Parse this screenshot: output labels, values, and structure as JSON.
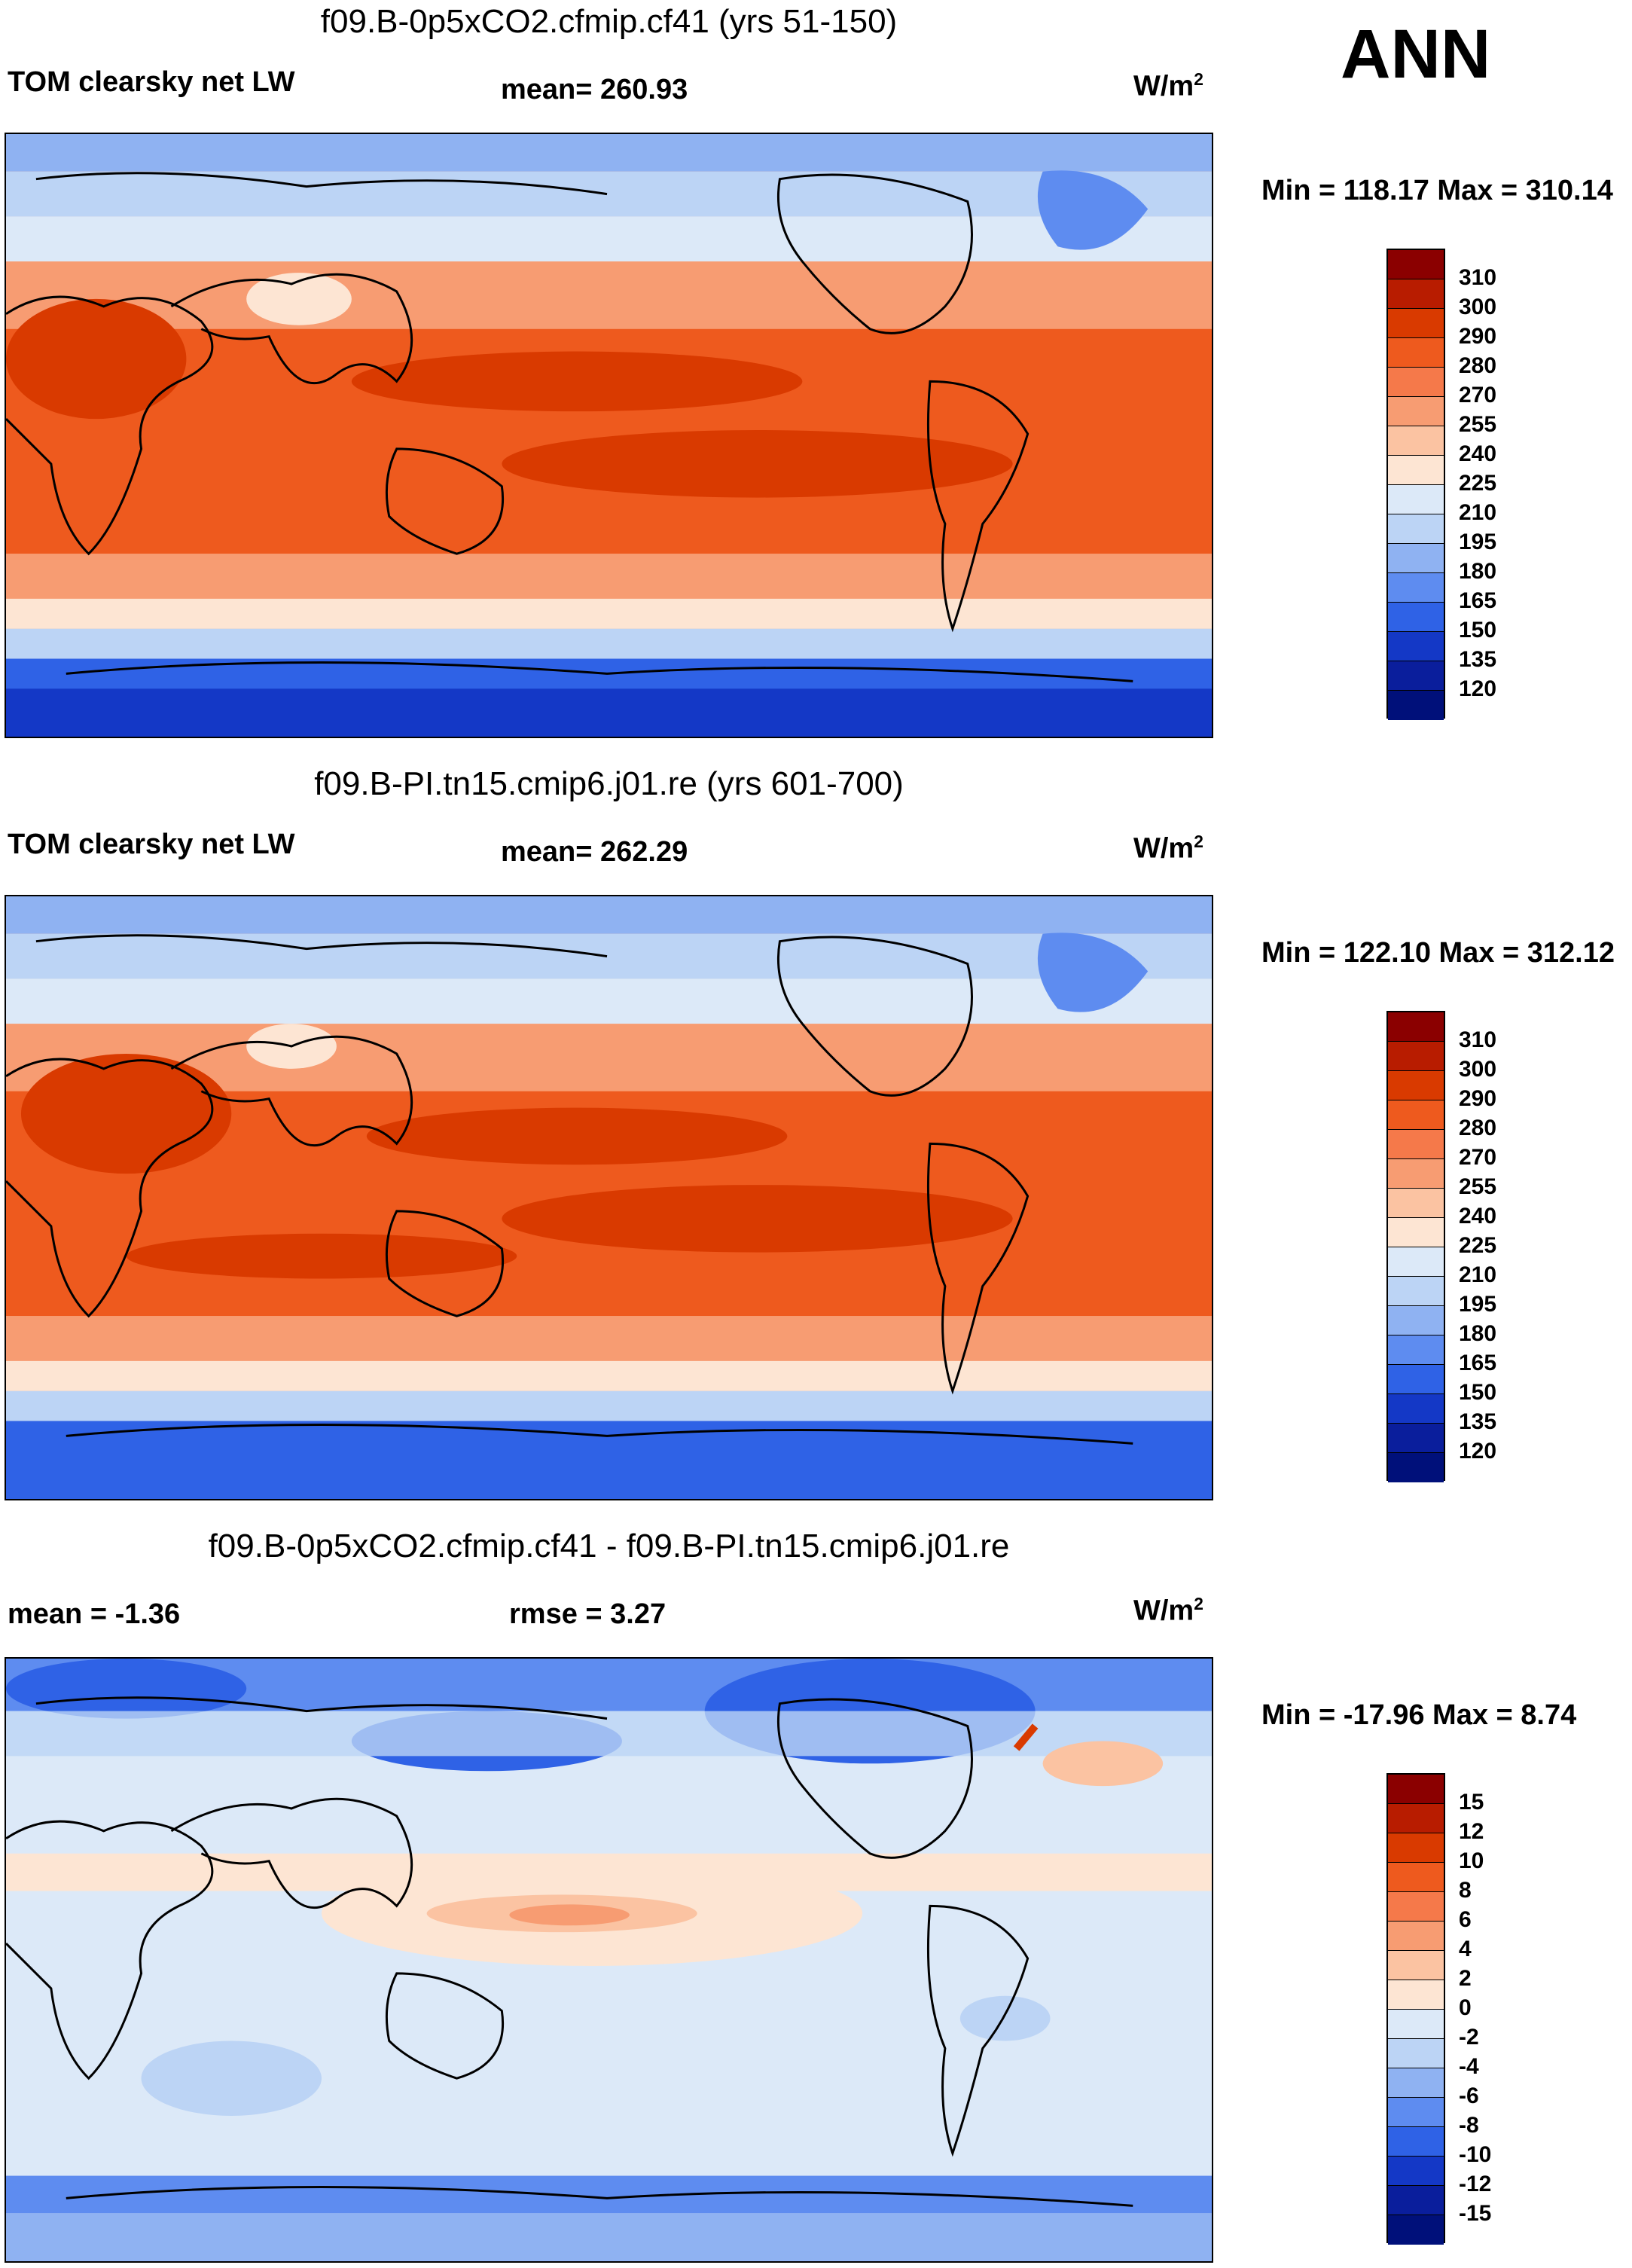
{
  "season": "ANN",
  "units_base": "W/m",
  "units_exp": "2",
  "panels": [
    {
      "title": "f09.B-0p5xCO2.cfmip.cf41 (yrs 51-150)",
      "left_label": "TOM clearsky net LW",
      "center_label": "mean= 260.93",
      "minmax": "Min = 118.17 Max = 310.14"
    },
    {
      "title": "f09.B-PI.tn15.cmip6.j01.re (yrs 601-700)",
      "left_label": "TOM clearsky net LW",
      "center_label": "mean= 262.29",
      "minmax": "Min = 122.10 Max = 312.12"
    },
    {
      "title": "f09.B-0p5xCO2.cfmip.cf41 - f09.B-PI.tn15.cmip6.j01.re",
      "left_label": "mean =  -1.36",
      "center_label": "rmse =   3.27",
      "minmax": "Min = -17.96 Max =   8.74"
    }
  ],
  "colorbar_main": {
    "labels": [
      "310",
      "300",
      "290",
      "280",
      "270",
      "255",
      "240",
      "225",
      "210",
      "195",
      "180",
      "165",
      "150",
      "135",
      "120"
    ],
    "colors": [
      "#8b0000",
      "#b81c00",
      "#d93a00",
      "#ee5a1e",
      "#f5794a",
      "#f79c72",
      "#fbc3a2",
      "#fde5d3",
      "#dce9f8",
      "#bcd4f5",
      "#8fb2f2",
      "#5e8cf0",
      "#2f62e6",
      "#1438c6",
      "#0a1e9c",
      "#00107a"
    ]
  },
  "colorbar_diff": {
    "labels": [
      "15",
      "12",
      "10",
      "8",
      "6",
      "4",
      "2",
      "0",
      "-2",
      "-4",
      "-6",
      "-8",
      "-10",
      "-12",
      "-15"
    ],
    "colors": [
      "#8b0000",
      "#b81c00",
      "#d93a00",
      "#ee5a1e",
      "#f5794a",
      "#f79c72",
      "#fbc3a2",
      "#fde5d3",
      "#dce9f8",
      "#bcd4f5",
      "#8fb2f2",
      "#5e8cf0",
      "#2f62e6",
      "#1438c6",
      "#0a1e9c",
      "#00107a"
    ]
  }
}
